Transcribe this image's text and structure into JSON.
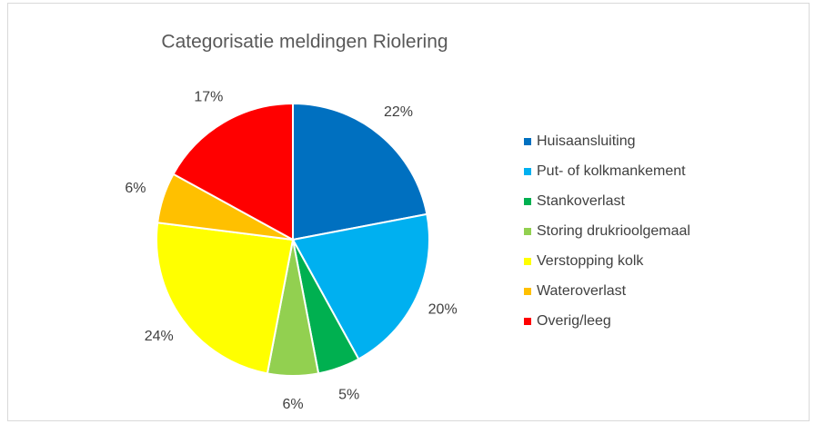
{
  "chart_data": {
    "type": "pie",
    "title": "Categorisatie meldingen Riolering",
    "categories": [
      "Huisaansluiting",
      "Put- of kolkmankement",
      "Stankoverlast",
      "Storing drukrioolgemaal",
      "Verstopping kolk",
      "Wateroverlast",
      "Overig/leeg"
    ],
    "values": [
      22,
      20,
      5,
      6,
      24,
      6,
      17
    ],
    "value_labels": [
      "22%",
      "20%",
      "5%",
      "6%",
      "24%",
      "6%",
      "17%"
    ],
    "colors": [
      "#0070c0",
      "#00b0f0",
      "#00b050",
      "#92d050",
      "#ffff00",
      "#ffc000",
      "#ff0000"
    ],
    "legend": "right"
  }
}
